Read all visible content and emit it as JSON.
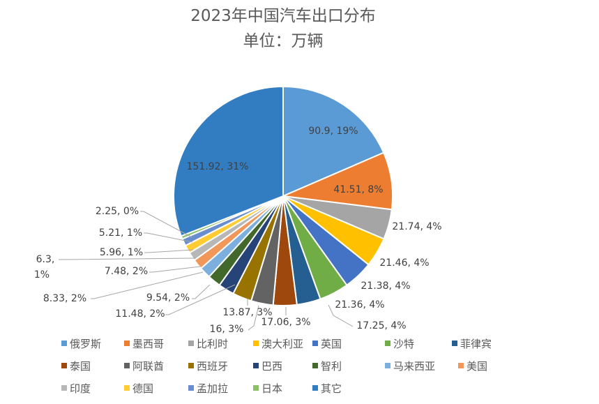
{
  "chart_data": {
    "type": "pie",
    "title": "2023年中国汽车出口分布",
    "subtitle": "单位：万辆",
    "legend_position": "bottom",
    "start_angle": "12 o'clock, clockwise",
    "categories": [
      "俄罗斯",
      "墨西哥",
      "比利时",
      "澳大利亚",
      "英国",
      "沙特",
      "菲律宾",
      "泰国",
      "阿联酋",
      "西班牙",
      "巴西",
      "智利",
      "马来西亚",
      "美国",
      "印度",
      "德国",
      "孟加拉",
      "日本",
      "其它"
    ],
    "values": [
      90.9,
      41.51,
      21.74,
      21.46,
      21.38,
      21.36,
      17.25,
      17.06,
      16,
      13.87,
      11.48,
      9.54,
      8.33,
      7.48,
      6.3,
      5.96,
      5.21,
      2.25,
      151.92
    ],
    "data_labels": [
      "90.9, 19%",
      "41.51, 8%",
      "21.74, 4%",
      "21.46, 4%",
      "21.38, 4%",
      "21.36, 4%",
      "17.25, 4%",
      "17.06, 3%",
      "16, 3%",
      "13.87, 3%",
      "11.48, 2%",
      "9.54, 2%",
      "8.33, 2%",
      "7.48, 2%",
      "6.3, 1%",
      "5.96, 1%",
      "5.21, 1%",
      "2.25, 0%",
      "151.92, 31%"
    ],
    "colors": [
      "#5B9BD5",
      "#ED7D31",
      "#A5A5A5",
      "#FFC000",
      "#4472C4",
      "#70AD47",
      "#255E91",
      "#9E480E",
      "#636363",
      "#997300",
      "#264478",
      "#43682B",
      "#7CAFDD",
      "#F1975A",
      "#B7B7B7",
      "#FFCD33",
      "#698ED0",
      "#8CC168",
      "#327DC2"
    ]
  }
}
